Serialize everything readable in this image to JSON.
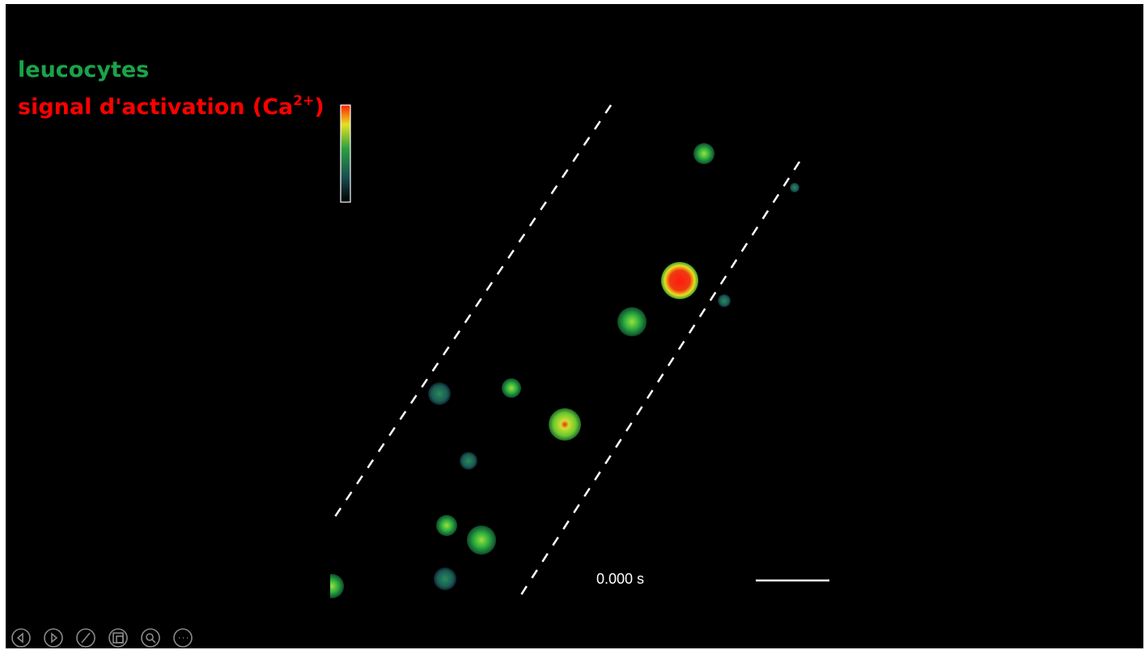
{
  "slide": {
    "legend": {
      "cells": "leucocytes",
      "signal": "signal d'activation (Ca",
      "signal_superscript": "2+",
      "signal_end": ")"
    },
    "timestamp": "0.000 s"
  }
}
